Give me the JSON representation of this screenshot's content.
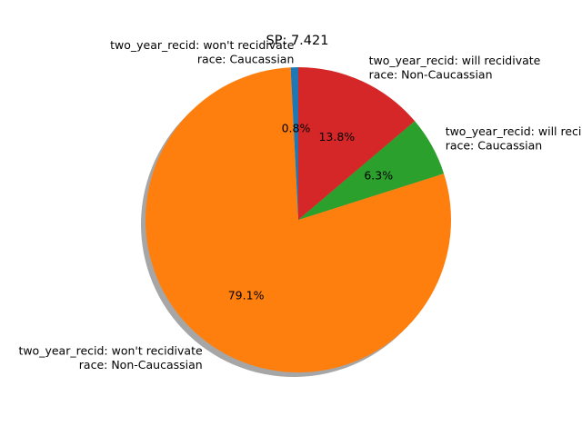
{
  "chart_data": {
    "type": "pie",
    "title": "SP: 7.421",
    "shadow": true,
    "start_angle_deg": 90,
    "direction": "counterclockwise",
    "slices": [
      {
        "label_lines": [
          "two_year_recid: won't recidivate",
          "race: Caucassian"
        ],
        "value": 0.8,
        "pct_label": "0.8%",
        "color": "#1f77b4"
      },
      {
        "label_lines": [
          "two_year_recid: won't recidivate",
          "race: Non-Caucassian"
        ],
        "value": 79.1,
        "pct_label": "79.1%",
        "color": "#ff7f0e"
      },
      {
        "label_lines": [
          "two_year_recid: will recidivate",
          "race: Caucassian"
        ],
        "value": 6.3,
        "pct_label": "6.3%",
        "color": "#2ca02c"
      },
      {
        "label_lines": [
          "two_year_recid: will recidivate",
          "race: Non-Caucassian"
        ],
        "value": 13.8,
        "pct_label": "13.8%",
        "color": "#d62728"
      }
    ]
  }
}
